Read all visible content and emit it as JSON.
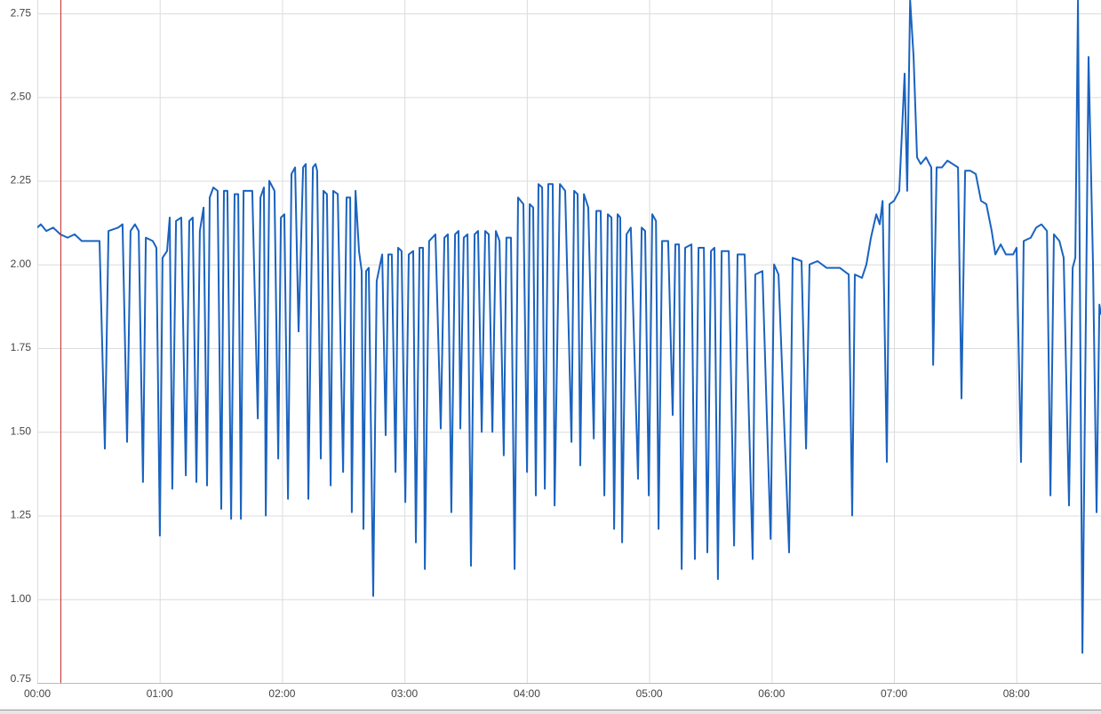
{
  "chart_data": {
    "type": "line",
    "xlim": [
      0,
      521.5
    ],
    "ylim": [
      0.75,
      2.79
    ],
    "xticks": [
      {
        "value": 0,
        "label": "00:00"
      },
      {
        "value": 60,
        "label": "01:00"
      },
      {
        "value": 120,
        "label": "02:00"
      },
      {
        "value": 180,
        "label": "03:00"
      },
      {
        "value": 240,
        "label": "04:00"
      },
      {
        "value": 300,
        "label": "05:00"
      },
      {
        "value": 360,
        "label": "06:00"
      },
      {
        "value": 420,
        "label": "07:00"
      },
      {
        "value": 480,
        "label": "08:00"
      }
    ],
    "yticks": [
      0.75,
      {
        "value": 1,
        "label": "1.00"
      },
      1.25,
      {
        "value": 1.5,
        "label": "1.50"
      },
      1.75,
      {
        "value": 2,
        "label": "2.00"
      },
      2.25,
      {
        "value": 2.5,
        "label": "2.50"
      },
      2.75
    ],
    "grid": true,
    "cursor_x": 11.3,
    "cursor_color": "#c62828",
    "series": [
      {
        "color": "#1a63c0",
        "x": [
          0,
          1.7,
          4.4,
          7.8,
          11.3,
          14.8,
          18.3,
          21.8,
          25.3,
          30.5,
          33.1,
          34.9,
          39.6,
          41.8,
          44.0,
          45.7,
          47.9,
          49.7,
          51.8,
          53.2,
          56.6,
          58.4,
          60.1,
          61.4,
          63.6,
          64.9,
          66.2,
          68.0,
          70.6,
          72.8,
          74.5,
          76.2,
          78.0,
          79.7,
          81.5,
          83.2,
          84.5,
          86.3,
          88.4,
          90.2,
          91.5,
          93.2,
          95.0,
          96.7,
          98.5,
          99.8,
          101.1,
          105.4,
          108.1,
          109.4,
          111.1,
          112.0,
          113.7,
          116.3,
          118.1,
          119.4,
          121.1,
          122.9,
          124.6,
          126.4,
          128.1,
          130.3,
          131.6,
          132.9,
          135.1,
          136.4,
          137.2,
          139.0,
          140.3,
          142.0,
          143.8,
          145.1,
          147.3,
          149.9,
          151.6,
          153.4,
          154.2,
          156.0,
          157.7,
          159.0,
          159.9,
          161.2,
          162.5,
          164.7,
          166.4,
          169.1,
          170.8,
          172.1,
          173.8,
          175.6,
          176.9,
          178.6,
          180.4,
          182.1,
          184.3,
          185.6,
          187.4,
          189.1,
          190.0,
          192.1,
          195.2,
          197.8,
          199.6,
          201.3,
          203.0,
          204.8,
          206.5,
          207.4,
          209.1,
          210.9,
          212.6,
          214.4,
          216.1,
          217.9,
          219.6,
          221.3,
          223.1,
          224.8,
          226.6,
          228.7,
          230.0,
          232.2,
          234.0,
          235.7,
          238.3,
          240.1,
          241.4,
          243.1,
          244.4,
          245.7,
          247.5,
          248.8,
          250.5,
          252.7,
          253.6,
          256.2,
          258.8,
          261.9,
          263.2,
          264.9,
          266.2,
          268.0,
          270.1,
          272.8,
          274.1,
          276.2,
          278.0,
          279.7,
          281.5,
          282.8,
          284.5,
          285.8,
          286.7,
          288.9,
          291.0,
          294.5,
          296.3,
          298.0,
          299.8,
          301.5,
          303.3,
          304.6,
          306.3,
          309.3,
          311.5,
          312.8,
          314.6,
          315.9,
          317.6,
          320.7,
          322.4,
          324.2,
          326.8,
          328.5,
          330.3,
          332.0,
          333.7,
          335.5,
          339.0,
          341.6,
          343.3,
          346.8,
          350.7,
          352.0,
          355.5,
          359.5,
          361.2,
          363.4,
          368.6,
          370.3,
          374.7,
          376.9,
          378.6,
          382.5,
          386.9,
          393.4,
          397.8,
          399.5,
          400.8,
          404.3,
          406.5,
          408.7,
          411.3,
          413.0,
          414.4,
          416.5,
          417.8,
          420.0,
          422.6,
          425.2,
          426.5,
          427.9,
          429.6,
          431.3,
          433.1,
          435.7,
          438.3,
          439.2,
          440.9,
          443.5,
          446.2,
          448.8,
          451.4,
          453.1,
          454.9,
          457.5,
          460.1,
          462.7,
          465.3,
          467.9,
          469.7,
          472.3,
          474.9,
          478.4,
          480.1,
          482.3,
          483.6,
          487.1,
          489.7,
          492.3,
          495.0,
          496.7,
          498.4,
          501.1,
          503.2,
          505.8,
          507.6,
          508.9,
          510.2,
          512.4,
          515.4,
          517.6,
          519.3,
          520.7,
          521.5
        ],
        "values": [
          2.11,
          2.12,
          2.1,
          2.11,
          2.09,
          2.08,
          2.09,
          2.07,
          2.07,
          2.07,
          1.45,
          2.1,
          2.11,
          2.12,
          1.47,
          2.1,
          2.12,
          2.1,
          1.35,
          2.08,
          2.07,
          2.05,
          1.19,
          2.02,
          2.04,
          2.14,
          1.33,
          2.13,
          2.14,
          1.37,
          2.13,
          2.14,
          1.35,
          2.1,
          2.17,
          1.34,
          2.2,
          2.23,
          2.22,
          1.27,
          2.22,
          2.22,
          1.24,
          2.21,
          2.21,
          1.24,
          2.22,
          2.22,
          1.54,
          2.2,
          2.23,
          1.25,
          2.25,
          2.22,
          1.42,
          2.14,
          2.15,
          1.3,
          2.27,
          2.29,
          1.8,
          2.29,
          2.3,
          1.3,
          2.29,
          2.3,
          2.28,
          1.42,
          2.22,
          2.21,
          1.34,
          2.22,
          2.21,
          1.38,
          2.2,
          2.2,
          1.26,
          2.22,
          2.04,
          1.98,
          1.21,
          1.98,
          1.99,
          1.01,
          1.95,
          2.03,
          1.49,
          2.03,
          2.03,
          1.38,
          2.05,
          2.04,
          1.29,
          2.03,
          2.04,
          1.17,
          2.05,
          2.05,
          1.09,
          2.07,
          2.09,
          1.51,
          2.08,
          2.09,
          1.26,
          2.09,
          2.1,
          1.51,
          2.08,
          2.09,
          1.1,
          2.09,
          2.1,
          1.5,
          2.1,
          2.09,
          1.5,
          2.1,
          2.07,
          1.43,
          2.08,
          2.08,
          1.09,
          2.2,
          2.18,
          1.38,
          2.18,
          2.17,
          1.31,
          2.24,
          2.23,
          1.33,
          2.24,
          2.24,
          1.28,
          2.24,
          2.22,
          1.47,
          2.22,
          2.21,
          1.4,
          2.21,
          2.17,
          1.48,
          2.16,
          2.16,
          1.31,
          2.15,
          2.14,
          1.21,
          2.15,
          2.14,
          1.17,
          2.09,
          2.11,
          1.36,
          2.11,
          2.1,
          1.31,
          2.15,
          2.13,
          1.21,
          2.07,
          2.07,
          1.55,
          2.06,
          2.06,
          1.09,
          2.05,
          2.06,
          1.12,
          2.05,
          2.05,
          1.14,
          2.04,
          2.05,
          1.06,
          2.04,
          2.04,
          1.16,
          2.03,
          2.03,
          1.12,
          1.97,
          1.98,
          1.18,
          2.0,
          1.97,
          1.14,
          2.02,
          2.01,
          1.45,
          2.0,
          2.01,
          1.99,
          1.99,
          1.97,
          1.25,
          1.97,
          1.96,
          2.0,
          2.08,
          2.15,
          2.12,
          2.19,
          1.41,
          2.18,
          2.19,
          2.22,
          2.57,
          2.22,
          2.79,
          2.62,
          2.32,
          2.3,
          2.32,
          2.29,
          1.7,
          2.29,
          2.29,
          2.31,
          2.3,
          2.29,
          1.6,
          2.28,
          2.28,
          2.27,
          2.19,
          2.18,
          2.1,
          2.03,
          2.06,
          2.03,
          2.03,
          2.05,
          1.41,
          2.07,
          2.08,
          2.11,
          2.12,
          2.1,
          1.31,
          2.09,
          2.07,
          2.02,
          1.28,
          1.99,
          2.02,
          2.79,
          0.84,
          2.62,
          2.0,
          1.26,
          1.88,
          1.85
        ]
      }
    ]
  }
}
